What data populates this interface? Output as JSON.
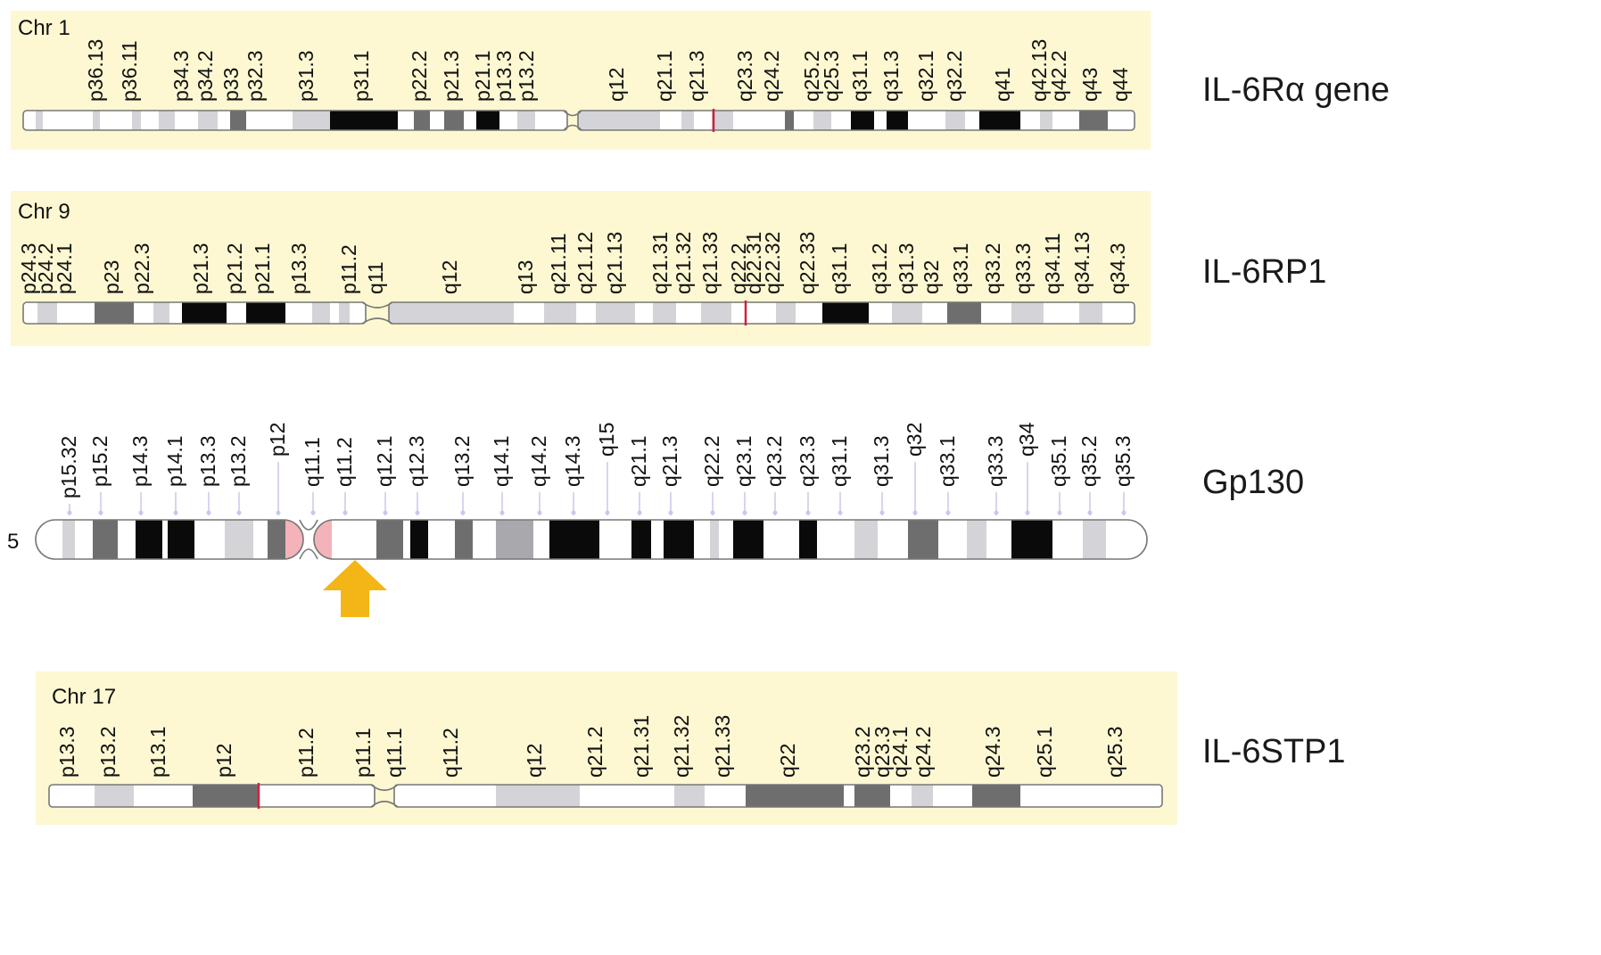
{
  "chromosomes": [
    {
      "id": "chr1",
      "name": "Chr 1",
      "gene": "IL-6Rα gene",
      "bands": [
        "p36.13",
        "p36.11",
        "p34.3",
        "p34.2",
        "p33",
        "p32.3",
        "p31.3",
        "p31.1",
        "p22.2",
        "p21.3",
        "p21.1",
        "p13.3",
        "p13.2",
        "q12",
        "q21.1",
        "q21.3",
        "q23.3",
        "q24.2",
        "q25.2",
        "q25.3",
        "q31.1",
        "q31.3",
        "q32.1",
        "q32.2",
        "q41",
        "q42.13",
        "q42.2",
        "q43",
        "q44"
      ]
    },
    {
      "id": "chr9",
      "name": "Chr 9",
      "gene": "IL-6RP1",
      "bands": [
        "p24.3",
        "p24.2",
        "p24.1",
        "p23",
        "p22.3",
        "p21.3",
        "p21.2",
        "p21.1",
        "p13.3",
        "p11.2",
        "q11",
        "q12",
        "q13",
        "q21.11",
        "q21.12",
        "q21.13",
        "q21.31",
        "q21.32",
        "q21.33",
        "q22.2",
        "q22.31",
        "q22.32",
        "q22.33",
        "q31.1",
        "q31.2",
        "q31.3",
        "q32",
        "q33.1",
        "q33.2",
        "q33.3",
        "q34.11",
        "q34.13",
        "q34.3"
      ]
    },
    {
      "id": "chr5",
      "name": "5",
      "gene": "Gp130",
      "bands": [
        "p15.32",
        "p15.2",
        "p14.3",
        "p14.1",
        "p13.3",
        "p13.2",
        "p12",
        "q11.1",
        "q11.2",
        "q12.1",
        "q12.3",
        "q13.2",
        "q14.1",
        "q14.2",
        "q14.3",
        "q15",
        "q21.1",
        "q21.3",
        "q22.2",
        "q23.1",
        "q23.2",
        "q23.3",
        "q31.1",
        "q31.3",
        "q32",
        "q33.1",
        "q33.3",
        "q34",
        "q35.1",
        "q35.2",
        "q35.3"
      ]
    },
    {
      "id": "chr17",
      "name": "Chr 17",
      "gene": "IL-6STP1",
      "bands": [
        "p13.3",
        "p13.2",
        "p13.1",
        "p12",
        "p11.2",
        "p11.1",
        "q11.1",
        "q11.2",
        "q12",
        "q21.2",
        "q21.31",
        "q21.32",
        "q21.33",
        "q22",
        "q23.2",
        "q23.3",
        "q24.1",
        "q24.2",
        "q24.3",
        "q25.1",
        "q25.3"
      ]
    }
  ],
  "colors": {
    "panel": "#fdf8d2",
    "band_black": "#0a0a0a",
    "band_dark": "#6e6e6e",
    "band_mid": "#a9a9ad",
    "band_light": "#d4d4d8",
    "centromere": "#f4b3b8",
    "marker": "#d0213a",
    "arrow": "#f3b616",
    "stalk": "#c8c8ec"
  },
  "icons": {
    "gene_locus_arrow": "up-arrow-icon"
  }
}
